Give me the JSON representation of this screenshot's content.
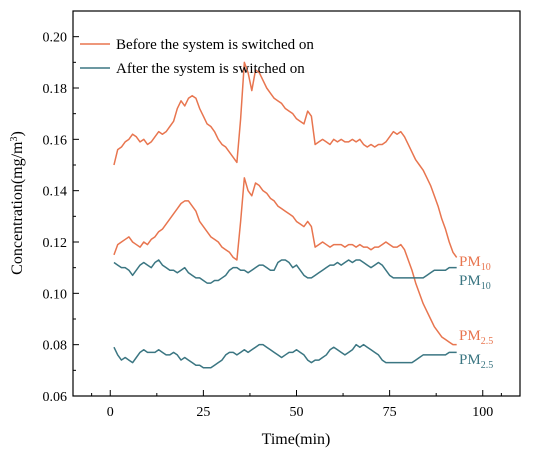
{
  "chart_data": {
    "type": "line",
    "xlabel": "Time(min)",
    "ylabel": "Concentration(mg/m",
    "ylabel_superscript": "3",
    "ylabel_suffix": ")",
    "xlim": [
      -10,
      110
    ],
    "ylim": [
      0.06,
      0.21
    ],
    "x_ticks": [
      "0",
      "25",
      "50",
      "75",
      "100"
    ],
    "y_ticks": [
      "0.06",
      "0.08",
      "0.10",
      "0.12",
      "0.14",
      "0.16",
      "0.18",
      "0.20"
    ],
    "grid": false,
    "legend_position": "top-left",
    "legend": [
      {
        "label": "Before the system is switched on",
        "color": "#e8754f"
      },
      {
        "label": "After the system is switched on",
        "color": "#3b7682"
      }
    ],
    "series": [
      {
        "label_main": "PM",
        "label_sub": "10",
        "group": "Before the system is switched on",
        "color": "#e8754f",
        "x": [
          1,
          2,
          3,
          4,
          5,
          6,
          7,
          8,
          9,
          10,
          11,
          12,
          13,
          14,
          15,
          16,
          17,
          18,
          19,
          20,
          21,
          22,
          23,
          24,
          25,
          26,
          27,
          28,
          29,
          30,
          31,
          32,
          33,
          34,
          35,
          36,
          37,
          38,
          39,
          40,
          41,
          42,
          43,
          44,
          45,
          46,
          47,
          48,
          49,
          50,
          51,
          52,
          53,
          54,
          55,
          56,
          57,
          58,
          59,
          60,
          61,
          62,
          63,
          64,
          65,
          66,
          67,
          68,
          69,
          70,
          71,
          72,
          73,
          74,
          75,
          76,
          77,
          78,
          79,
          80,
          81,
          82,
          83,
          84,
          85,
          86,
          87,
          88,
          89,
          90,
          91,
          92,
          93
        ],
        "y": [
          0.15,
          0.156,
          0.157,
          0.159,
          0.16,
          0.162,
          0.161,
          0.159,
          0.16,
          0.158,
          0.159,
          0.161,
          0.163,
          0.162,
          0.163,
          0.165,
          0.167,
          0.172,
          0.175,
          0.173,
          0.176,
          0.177,
          0.176,
          0.172,
          0.169,
          0.166,
          0.165,
          0.163,
          0.16,
          0.158,
          0.157,
          0.155,
          0.153,
          0.151,
          0.168,
          0.19,
          0.186,
          0.179,
          0.187,
          0.186,
          0.183,
          0.18,
          0.178,
          0.176,
          0.175,
          0.174,
          0.172,
          0.171,
          0.17,
          0.168,
          0.167,
          0.166,
          0.171,
          0.169,
          0.158,
          0.159,
          0.16,
          0.159,
          0.158,
          0.16,
          0.159,
          0.16,
          0.159,
          0.159,
          0.16,
          0.159,
          0.16,
          0.158,
          0.157,
          0.158,
          0.157,
          0.158,
          0.158,
          0.159,
          0.161,
          0.163,
          0.162,
          0.163,
          0.161,
          0.158,
          0.155,
          0.152,
          0.15,
          0.148,
          0.145,
          0.142,
          0.138,
          0.134,
          0.129,
          0.125,
          0.12,
          0.116,
          0.114
        ]
      },
      {
        "label_main": "PM",
        "label_sub": "2.5",
        "group": "Before the system is switched on",
        "color": "#e8754f",
        "x": [
          1,
          2,
          3,
          4,
          5,
          6,
          7,
          8,
          9,
          10,
          11,
          12,
          13,
          14,
          15,
          16,
          17,
          18,
          19,
          20,
          21,
          22,
          23,
          24,
          25,
          26,
          27,
          28,
          29,
          30,
          31,
          32,
          33,
          34,
          35,
          36,
          37,
          38,
          39,
          40,
          41,
          42,
          43,
          44,
          45,
          46,
          47,
          48,
          49,
          50,
          51,
          52,
          53,
          54,
          55,
          56,
          57,
          58,
          59,
          60,
          61,
          62,
          63,
          64,
          65,
          66,
          67,
          68,
          69,
          70,
          71,
          72,
          73,
          74,
          75,
          76,
          77,
          78,
          79,
          80,
          81,
          82,
          83,
          84,
          85,
          86,
          87,
          88,
          89,
          90,
          91,
          92,
          93
        ],
        "y": [
          0.115,
          0.119,
          0.12,
          0.121,
          0.122,
          0.12,
          0.119,
          0.118,
          0.12,
          0.119,
          0.121,
          0.122,
          0.124,
          0.125,
          0.127,
          0.129,
          0.131,
          0.133,
          0.135,
          0.136,
          0.136,
          0.134,
          0.132,
          0.128,
          0.126,
          0.124,
          0.122,
          0.121,
          0.12,
          0.118,
          0.117,
          0.116,
          0.114,
          0.113,
          0.128,
          0.145,
          0.14,
          0.138,
          0.143,
          0.142,
          0.14,
          0.139,
          0.137,
          0.136,
          0.134,
          0.133,
          0.132,
          0.131,
          0.13,
          0.128,
          0.127,
          0.126,
          0.128,
          0.126,
          0.118,
          0.119,
          0.12,
          0.119,
          0.118,
          0.119,
          0.119,
          0.119,
          0.118,
          0.119,
          0.119,
          0.118,
          0.119,
          0.118,
          0.118,
          0.117,
          0.118,
          0.118,
          0.119,
          0.12,
          0.119,
          0.118,
          0.118,
          0.119,
          0.117,
          0.113,
          0.109,
          0.104,
          0.1,
          0.096,
          0.093,
          0.09,
          0.087,
          0.085,
          0.083,
          0.082,
          0.081,
          0.08,
          0.08
        ]
      },
      {
        "label_main": "PM",
        "label_sub": "10",
        "group": "After the system is switched on",
        "color": "#3b7682",
        "x": [
          1,
          2,
          3,
          4,
          5,
          6,
          7,
          8,
          9,
          10,
          11,
          12,
          13,
          14,
          15,
          16,
          17,
          18,
          19,
          20,
          21,
          22,
          23,
          24,
          25,
          26,
          27,
          28,
          29,
          30,
          31,
          32,
          33,
          34,
          35,
          36,
          37,
          38,
          39,
          40,
          41,
          42,
          43,
          44,
          45,
          46,
          47,
          48,
          49,
          50,
          51,
          52,
          53,
          54,
          55,
          56,
          57,
          58,
          59,
          60,
          61,
          62,
          63,
          64,
          65,
          66,
          67,
          68,
          69,
          70,
          71,
          72,
          73,
          74,
          75,
          76,
          77,
          78,
          79,
          80,
          81,
          82,
          83,
          84,
          85,
          86,
          87,
          88,
          89,
          90,
          91,
          92,
          93
        ],
        "y": [
          0.112,
          0.111,
          0.11,
          0.11,
          0.109,
          0.107,
          0.109,
          0.111,
          0.112,
          0.111,
          0.11,
          0.112,
          0.113,
          0.111,
          0.11,
          0.109,
          0.109,
          0.108,
          0.109,
          0.11,
          0.108,
          0.107,
          0.106,
          0.106,
          0.105,
          0.104,
          0.104,
          0.105,
          0.105,
          0.106,
          0.107,
          0.109,
          0.11,
          0.11,
          0.109,
          0.109,
          0.108,
          0.109,
          0.11,
          0.111,
          0.111,
          0.11,
          0.109,
          0.109,
          0.112,
          0.113,
          0.113,
          0.112,
          0.11,
          0.111,
          0.109,
          0.107,
          0.106,
          0.106,
          0.107,
          0.108,
          0.109,
          0.11,
          0.111,
          0.111,
          0.112,
          0.111,
          0.112,
          0.113,
          0.112,
          0.113,
          0.113,
          0.112,
          0.111,
          0.11,
          0.111,
          0.112,
          0.111,
          0.109,
          0.107,
          0.106,
          0.106,
          0.106,
          0.106,
          0.106,
          0.106,
          0.106,
          0.106,
          0.106,
          0.107,
          0.108,
          0.109,
          0.109,
          0.109,
          0.109,
          0.11,
          0.11,
          0.11
        ]
      },
      {
        "label_main": "PM",
        "label_sub": "2.5",
        "group": "After the system is switched on",
        "color": "#3b7682",
        "x": [
          1,
          2,
          3,
          4,
          5,
          6,
          7,
          8,
          9,
          10,
          11,
          12,
          13,
          14,
          15,
          16,
          17,
          18,
          19,
          20,
          21,
          22,
          23,
          24,
          25,
          26,
          27,
          28,
          29,
          30,
          31,
          32,
          33,
          34,
          35,
          36,
          37,
          38,
          39,
          40,
          41,
          42,
          43,
          44,
          45,
          46,
          47,
          48,
          49,
          50,
          51,
          52,
          53,
          54,
          55,
          56,
          57,
          58,
          59,
          60,
          61,
          62,
          63,
          64,
          65,
          66,
          67,
          68,
          69,
          70,
          71,
          72,
          73,
          74,
          75,
          76,
          77,
          78,
          79,
          80,
          81,
          82,
          83,
          84,
          85,
          86,
          87,
          88,
          89,
          90,
          91,
          92,
          93
        ],
        "y": [
          0.079,
          0.076,
          0.074,
          0.075,
          0.074,
          0.073,
          0.075,
          0.077,
          0.078,
          0.077,
          0.077,
          0.077,
          0.078,
          0.077,
          0.076,
          0.076,
          0.077,
          0.076,
          0.074,
          0.075,
          0.074,
          0.073,
          0.072,
          0.072,
          0.071,
          0.071,
          0.071,
          0.072,
          0.073,
          0.074,
          0.076,
          0.077,
          0.077,
          0.076,
          0.077,
          0.078,
          0.077,
          0.078,
          0.079,
          0.08,
          0.08,
          0.079,
          0.078,
          0.077,
          0.076,
          0.075,
          0.076,
          0.077,
          0.077,
          0.078,
          0.077,
          0.076,
          0.074,
          0.073,
          0.074,
          0.074,
          0.075,
          0.076,
          0.078,
          0.079,
          0.078,
          0.077,
          0.076,
          0.077,
          0.078,
          0.08,
          0.079,
          0.08,
          0.079,
          0.078,
          0.077,
          0.076,
          0.074,
          0.073,
          0.073,
          0.073,
          0.073,
          0.073,
          0.073,
          0.073,
          0.073,
          0.074,
          0.075,
          0.076,
          0.076,
          0.076,
          0.076,
          0.076,
          0.076,
          0.076,
          0.077,
          0.077,
          0.077
        ]
      }
    ]
  }
}
